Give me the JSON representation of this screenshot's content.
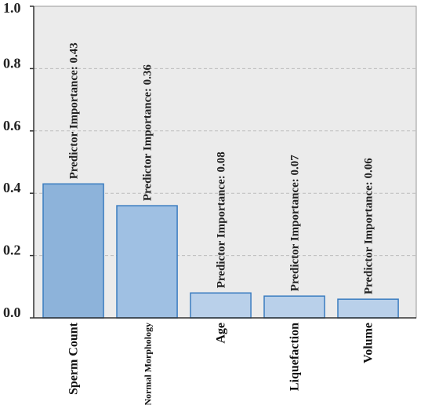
{
  "chart_data": {
    "type": "bar",
    "categories": [
      "Sperm Count",
      "Normal Morphology",
      "Age",
      "Liquefaction",
      "Volume"
    ],
    "values": [
      0.43,
      0.36,
      0.08,
      0.07,
      0.06
    ],
    "data_labels": [
      "Predictor Importance: 0.43",
      "Predictor Importance: 0.36",
      "Predictor Importance: 0.08",
      "Predictor Importance: 0.07",
      "Predictor Importance: 0.06"
    ],
    "yticks": [
      "0.0",
      "0.2",
      "0.4",
      "0.6",
      "0.8",
      "1.0"
    ],
    "ylim": [
      0,
      1.0
    ],
    "grid": true,
    "legend": "none",
    "colors": {
      "plot_bg": "#ebebeb",
      "grid": "#bdbdbd",
      "bars": [
        "#8db3da",
        "#9fc0e3",
        "#b9d0ea",
        "#b9d0ea",
        "#b9d0ea"
      ],
      "bar_stroke": "#3a7cc0",
      "axis": "#333333"
    }
  }
}
